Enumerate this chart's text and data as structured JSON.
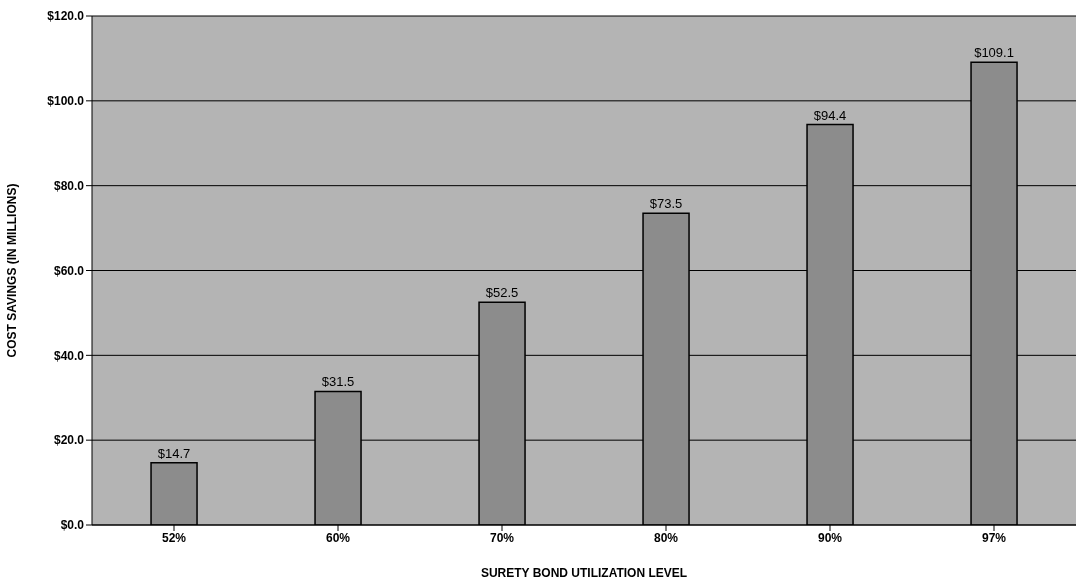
{
  "chart_data": {
    "type": "bar",
    "xlabel": "SURETY BOND UTILIZATION LEVEL",
    "ylabel": "COST SAVINGS (IN MILLIONS)",
    "categories": [
      "52%",
      "60%",
      "70%",
      "80%",
      "90%",
      "97%"
    ],
    "values": [
      14.7,
      31.5,
      52.5,
      73.5,
      94.4,
      109.1
    ],
    "value_labels": [
      "$14.7",
      "$31.5",
      "$52.5",
      "$73.5",
      "$94.4",
      "$109.1"
    ],
    "color": "#8c8c8c",
    "ylim": [
      0,
      120
    ],
    "yticks": [
      {
        "value": 0,
        "label": "$0.0"
      },
      {
        "value": 20,
        "label": "$20.0"
      },
      {
        "value": 40,
        "label": "$40.0"
      },
      {
        "value": 60,
        "label": "$60.0"
      },
      {
        "value": 80,
        "label": "$80.0"
      },
      {
        "value": 100,
        "label": "$100.0"
      },
      {
        "value": 120,
        "label": "$120.0"
      }
    ],
    "grid": "y"
  }
}
